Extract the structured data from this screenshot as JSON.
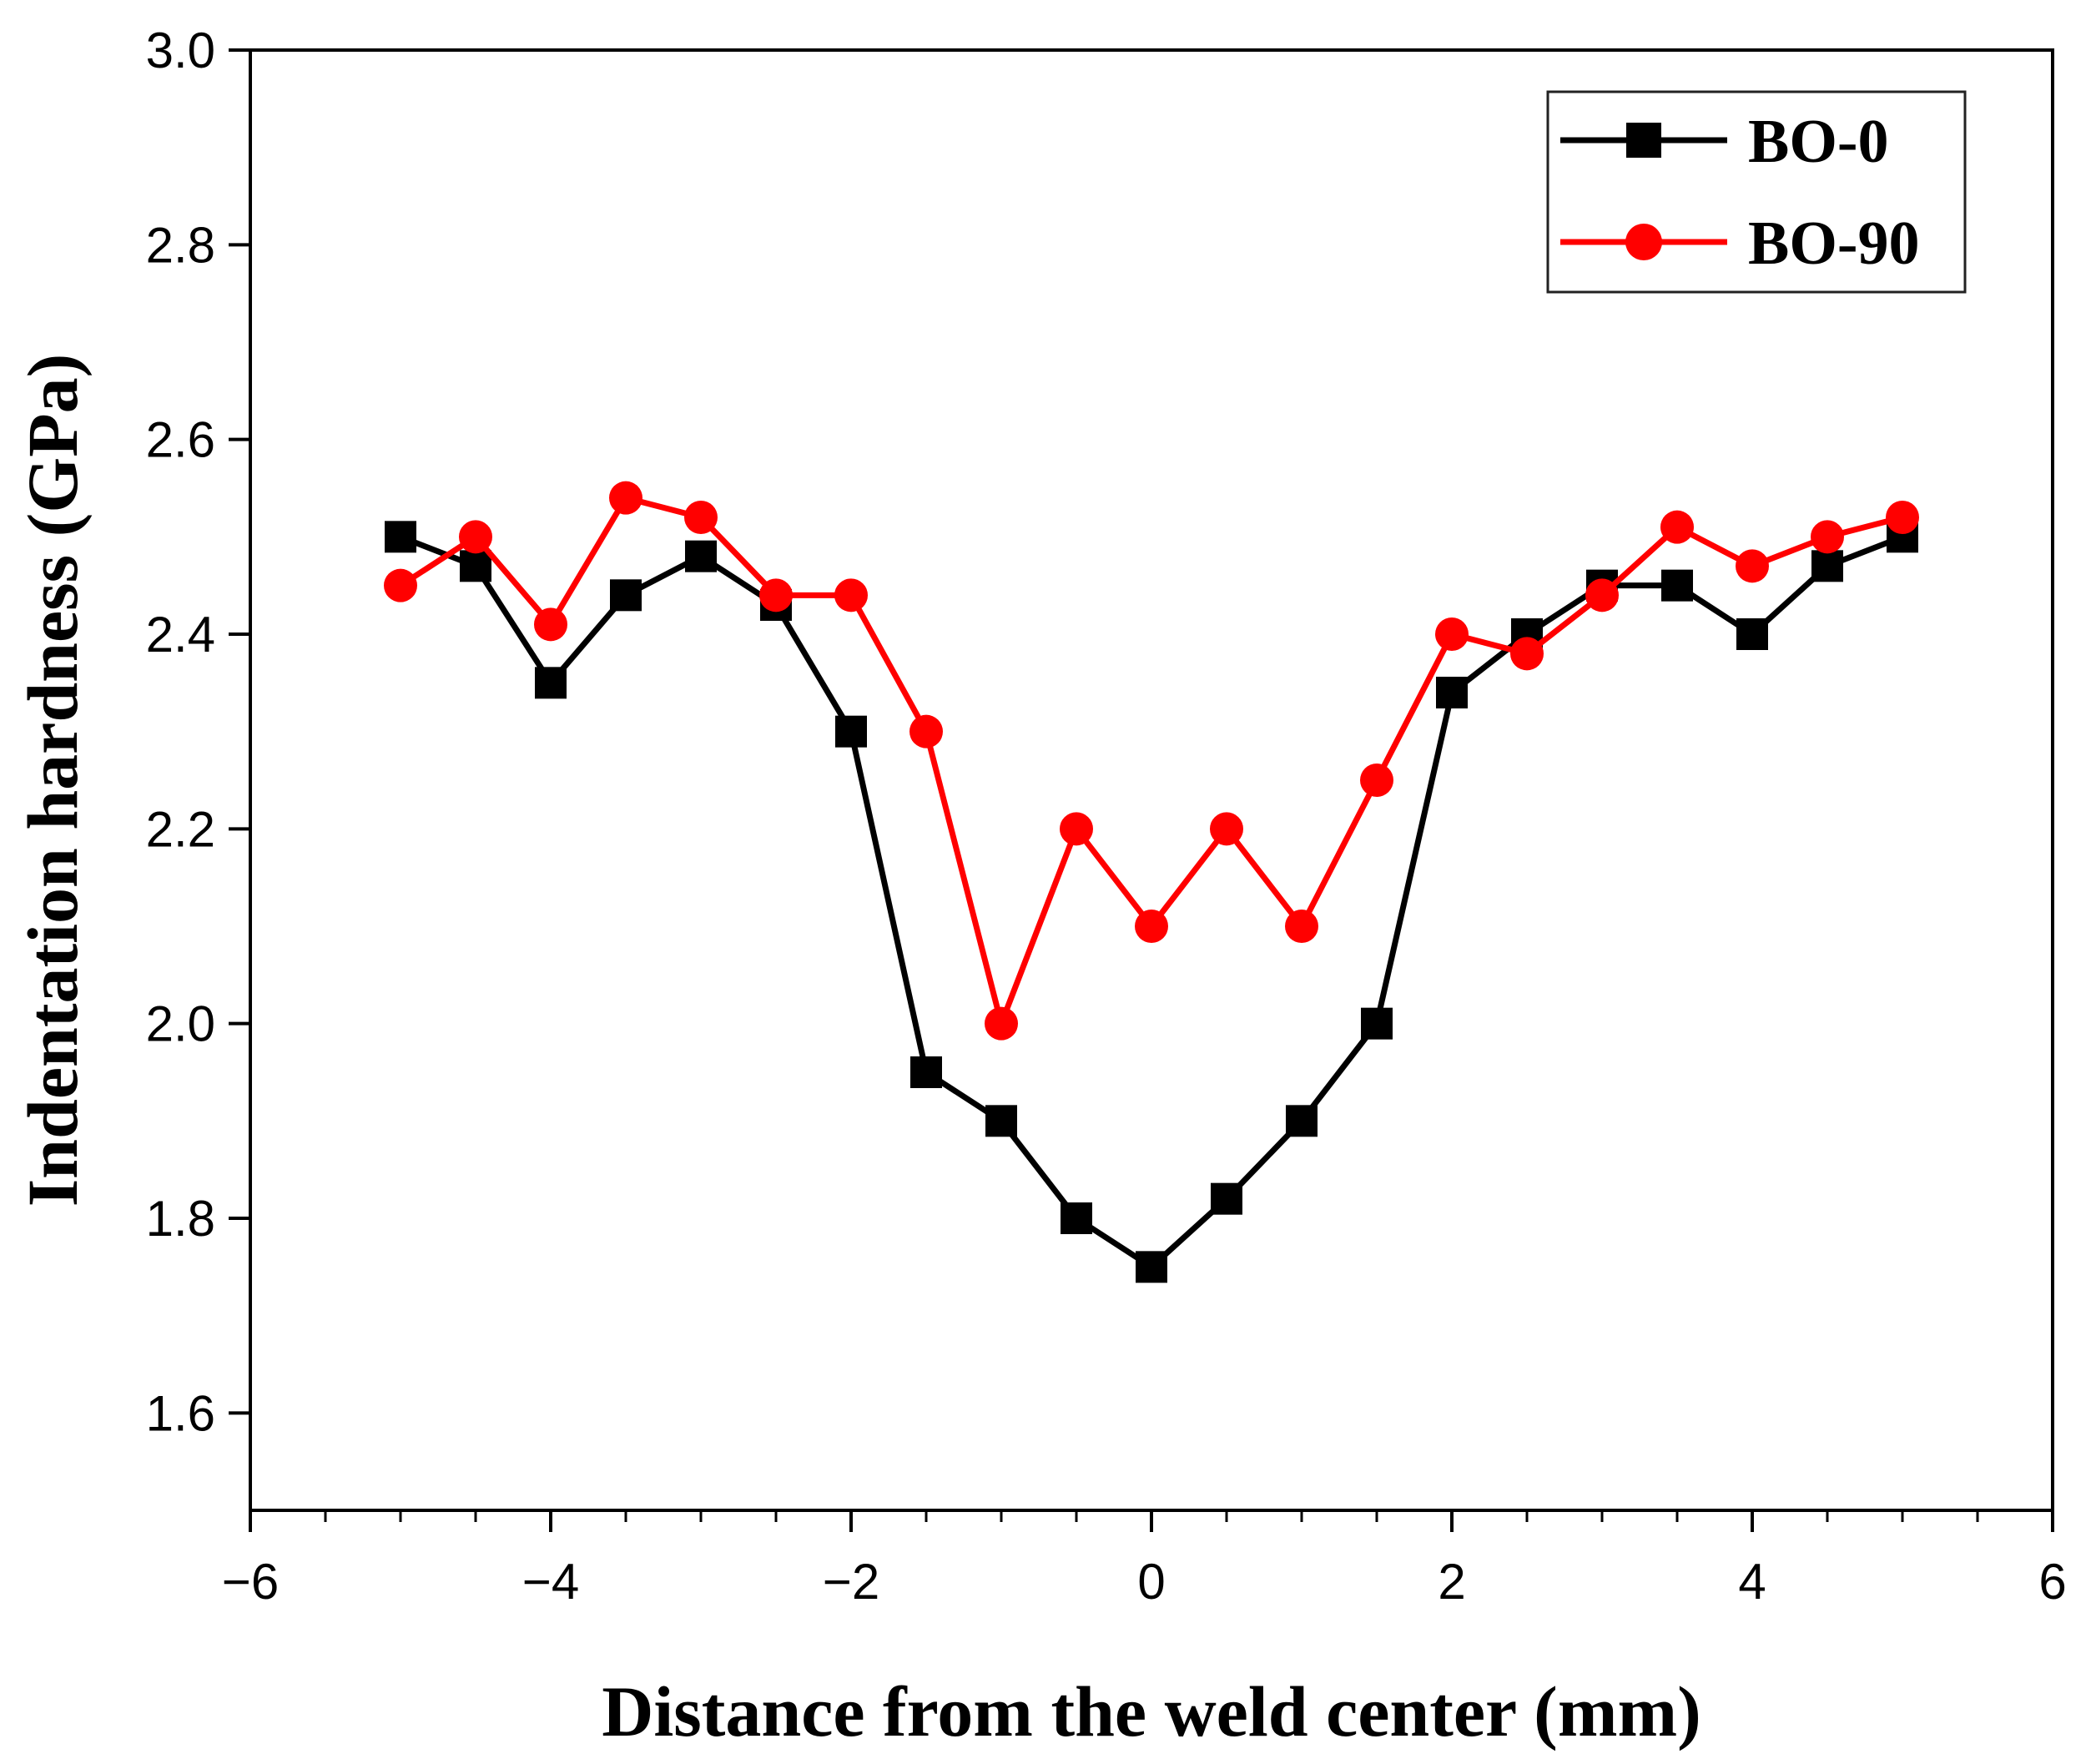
{
  "chart_data": {
    "type": "line",
    "title": "",
    "xlabel": "Distance from the weld center (mm)",
    "ylabel": "Indentation hardness (GPa)",
    "xlim": [
      -6,
      6
    ],
    "ylim": [
      1.5,
      3.0
    ],
    "xticks": [
      -6,
      -4,
      -2,
      0,
      2,
      4,
      6
    ],
    "xtick_labels": [
      "−6",
      "−4",
      "−2",
      "0",
      "2",
      "4",
      "6"
    ],
    "yticks": [
      1.6,
      1.8,
      2.0,
      2.2,
      2.4,
      2.6,
      2.8,
      3.0
    ],
    "ytick_labels": [
      "1.6",
      "1.8",
      "2.0",
      "2.2",
      "2.4",
      "2.6",
      "2.8",
      "3.0"
    ],
    "grid": false,
    "legend_position": "top-right",
    "x": [
      -5,
      -4.5,
      -4,
      -3.5,
      -3,
      -2.5,
      -2,
      -1.5,
      -1,
      -0.5,
      0,
      0.5,
      1,
      1.5,
      2,
      2.5,
      3,
      3.5,
      4,
      4.5,
      5
    ],
    "series": [
      {
        "name": "BO-0",
        "color": "#000000",
        "marker": "square",
        "values": [
          2.5,
          2.47,
          2.35,
          2.44,
          2.48,
          2.43,
          2.3,
          1.95,
          1.9,
          1.8,
          1.75,
          1.82,
          1.9,
          2.0,
          2.34,
          2.4,
          2.45,
          2.45,
          2.4,
          2.47,
          2.5
        ]
      },
      {
        "name": "BO-90",
        "color": "#ff0000",
        "marker": "circle",
        "values": [
          2.45,
          2.5,
          2.41,
          2.54,
          2.52,
          2.44,
          2.44,
          2.3,
          2.0,
          2.2,
          2.1,
          2.2,
          2.1,
          2.25,
          2.4,
          2.38,
          2.44,
          2.51,
          2.47,
          2.5,
          2.52
        ]
      }
    ]
  }
}
